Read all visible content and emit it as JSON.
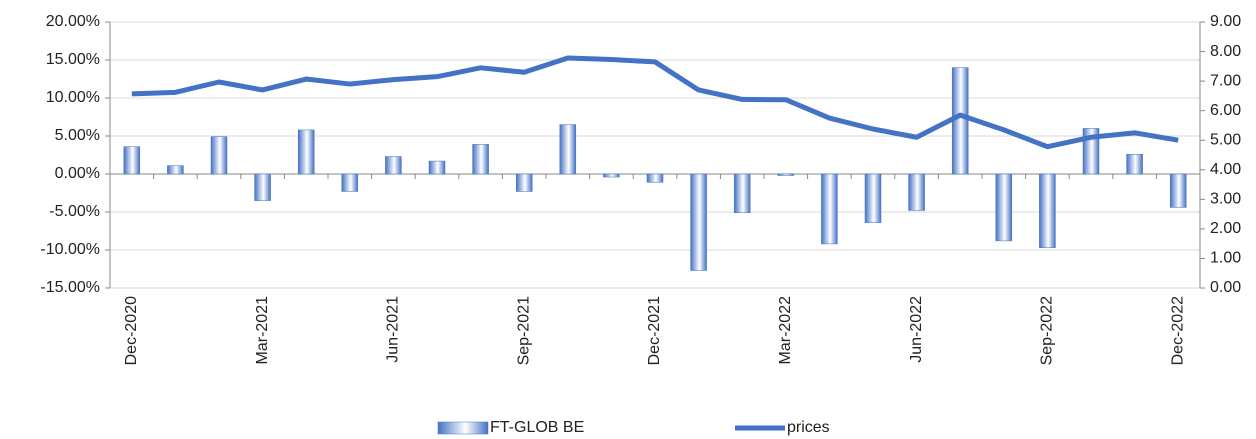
{
  "chart_data": {
    "type": "bar-line",
    "categories": [
      "Dec-2020",
      null,
      null,
      "Mar-2021",
      null,
      null,
      "Jun-2021",
      null,
      null,
      "Sep-2021",
      null,
      null,
      "Dec-2021",
      null,
      null,
      "Mar-2022",
      null,
      null,
      "Jun-2022",
      null,
      null,
      "Sep-2022",
      null,
      null,
      "Dec-2022"
    ],
    "series": [
      {
        "name": "FT-GLOB BE",
        "type": "bar",
        "color": "#4472c4",
        "values": [
          3.6,
          1.1,
          4.9,
          -3.5,
          5.8,
          -2.3,
          2.3,
          1.7,
          3.9,
          -2.3,
          6.5,
          -0.4,
          -1.1,
          -12.7,
          -5.1,
          -0.2,
          -9.2,
          -6.4,
          -4.8,
          14.0,
          -8.8,
          -9.7,
          6.0,
          2.6,
          -4.4
        ]
      },
      {
        "name": "prices",
        "type": "line",
        "axis": "y2",
        "color": "#4472c4",
        "values": [
          6.57,
          6.62,
          6.97,
          6.7,
          7.07,
          6.9,
          7.05,
          7.15,
          7.45,
          7.3,
          7.78,
          7.73,
          7.65,
          6.7,
          6.38,
          6.37,
          5.75,
          5.38,
          5.1,
          5.85,
          5.35,
          4.78,
          5.1,
          5.25,
          5.0
        ]
      }
    ],
    "ylim": [
      -15,
      20
    ],
    "yticks": [
      {
        "value": -15,
        "label": "-15.00%"
      },
      {
        "value": -10,
        "label": "-10.00%"
      },
      {
        "value": -5,
        "label": "-5.00%"
      },
      {
        "value": 0,
        "label": "0.00%"
      },
      {
        "value": 5,
        "label": "5.00%"
      },
      {
        "value": 10,
        "label": "10.00%"
      },
      {
        "value": 15,
        "label": "15.00%"
      },
      {
        "value": 20,
        "label": "20.00%"
      }
    ],
    "y2lim": [
      0,
      9
    ],
    "y2ticks": [
      {
        "value": 0,
        "label": "0.00"
      },
      {
        "value": 1,
        "label": "1.00"
      },
      {
        "value": 2,
        "label": "2.00"
      },
      {
        "value": 3,
        "label": "3.00"
      },
      {
        "value": 4,
        "label": "4.00"
      },
      {
        "value": 5,
        "label": "5.00"
      },
      {
        "value": 6,
        "label": "6.00"
      },
      {
        "value": 7,
        "label": "7.00"
      },
      {
        "value": 8,
        "label": "8.00"
      },
      {
        "value": 9,
        "label": "9.00"
      }
    ],
    "grid": true,
    "legend": "bottom"
  }
}
